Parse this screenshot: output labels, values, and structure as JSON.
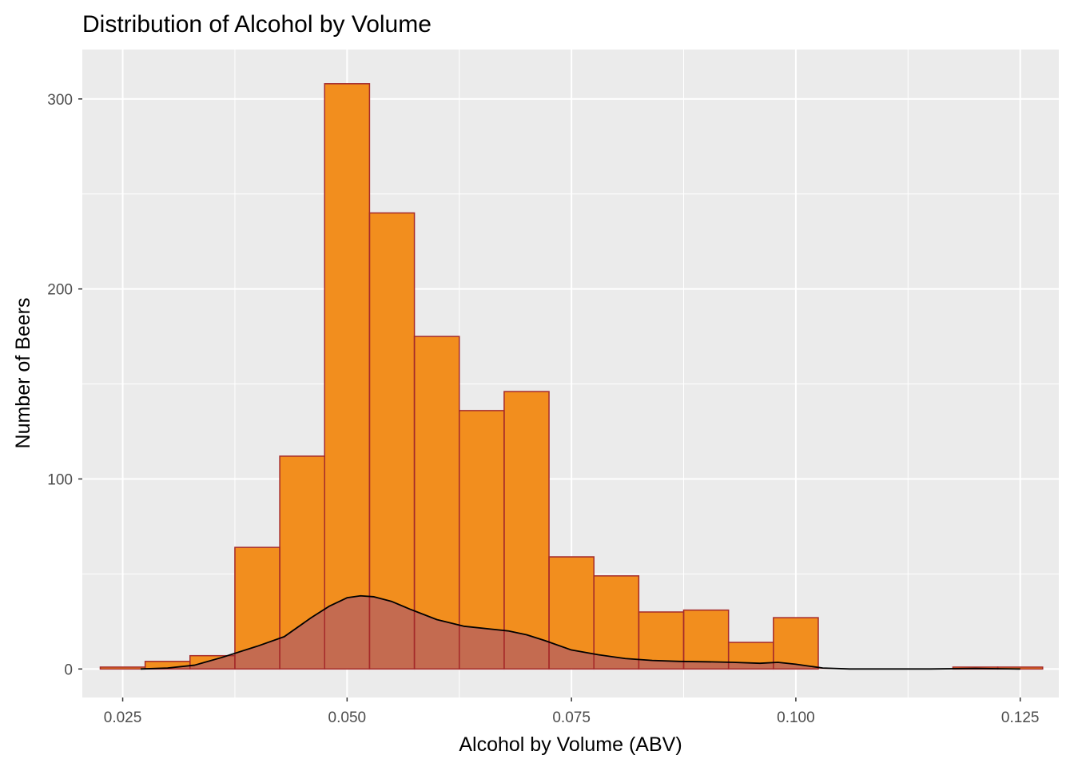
{
  "chart_data": {
    "type": "bar",
    "title": "Distribution of Alcohol by Volume",
    "xlabel": "Alcohol by Volume (ABV)",
    "ylabel": "Number of Beers",
    "xlim": [
      0.0205,
      0.1293
    ],
    "ylim": [
      -15,
      326
    ],
    "x_ticks": [
      0.025,
      0.05,
      0.075,
      0.1,
      0.125
    ],
    "x_tick_labels": [
      "0.025",
      "0.050",
      "0.075",
      "0.100",
      "0.125"
    ],
    "y_ticks": [
      0,
      100,
      200,
      300
    ],
    "y_tick_labels": [
      "0",
      "100",
      "200",
      "300"
    ],
    "grid": true,
    "legend": "none",
    "histogram": {
      "bin_width": 0.005,
      "bins": [
        {
          "start": 0.0225,
          "end": 0.0275,
          "count": 1
        },
        {
          "start": 0.0275,
          "end": 0.0325,
          "count": 4
        },
        {
          "start": 0.0325,
          "end": 0.0375,
          "count": 7
        },
        {
          "start": 0.0375,
          "end": 0.0425,
          "count": 64
        },
        {
          "start": 0.0425,
          "end": 0.0475,
          "count": 112
        },
        {
          "start": 0.0475,
          "end": 0.0525,
          "count": 308
        },
        {
          "start": 0.0525,
          "end": 0.0575,
          "count": 240
        },
        {
          "start": 0.0575,
          "end": 0.0625,
          "count": 175
        },
        {
          "start": 0.0625,
          "end": 0.0675,
          "count": 136
        },
        {
          "start": 0.0675,
          "end": 0.0725,
          "count": 146
        },
        {
          "start": 0.0725,
          "end": 0.0775,
          "count": 59
        },
        {
          "start": 0.0775,
          "end": 0.0825,
          "count": 49
        },
        {
          "start": 0.0825,
          "end": 0.0875,
          "count": 30
        },
        {
          "start": 0.0875,
          "end": 0.0925,
          "count": 31
        },
        {
          "start": 0.0925,
          "end": 0.0975,
          "count": 14
        },
        {
          "start": 0.0975,
          "end": 0.1025,
          "count": 27
        },
        {
          "start": 0.1025,
          "end": 0.1075,
          "count": 0
        },
        {
          "start": 0.1075,
          "end": 0.1125,
          "count": 0
        },
        {
          "start": 0.1125,
          "end": 0.1175,
          "count": 0
        },
        {
          "start": 0.1175,
          "end": 0.1225,
          "count": 1
        },
        {
          "start": 0.1225,
          "end": 0.1275,
          "count": 1
        }
      ]
    },
    "density_curve": {
      "x": [
        0.027,
        0.03,
        0.033,
        0.036,
        0.04,
        0.043,
        0.046,
        0.048,
        0.05,
        0.0515,
        0.053,
        0.055,
        0.057,
        0.06,
        0.063,
        0.066,
        0.068,
        0.07,
        0.072,
        0.075,
        0.078,
        0.081,
        0.084,
        0.087,
        0.09,
        0.093,
        0.096,
        0.098,
        0.1,
        0.103,
        0.106,
        0.11,
        0.115,
        0.12,
        0.125
      ],
      "y": [
        0,
        0.5,
        2,
        6,
        12,
        17,
        27,
        33,
        37.5,
        38.5,
        38,
        35.5,
        31.5,
        26,
        22.5,
        21,
        20,
        18,
        15,
        10,
        7.5,
        5.5,
        4.5,
        4,
        3.8,
        3.5,
        3,
        3.5,
        2.5,
        0.5,
        0,
        0,
        0,
        0.3,
        0
      ]
    },
    "colors": {
      "panel_background": "#ebebeb",
      "grid_major": "#ffffff",
      "bar_fill": "#f28e1e",
      "bar_outline": "#a52a2a",
      "density_fill": "#b8635c",
      "density_fill_opacity": 0.8,
      "density_line": "#000000",
      "tick_label": "#4d4d4d",
      "tick_mark": "#333333"
    }
  }
}
